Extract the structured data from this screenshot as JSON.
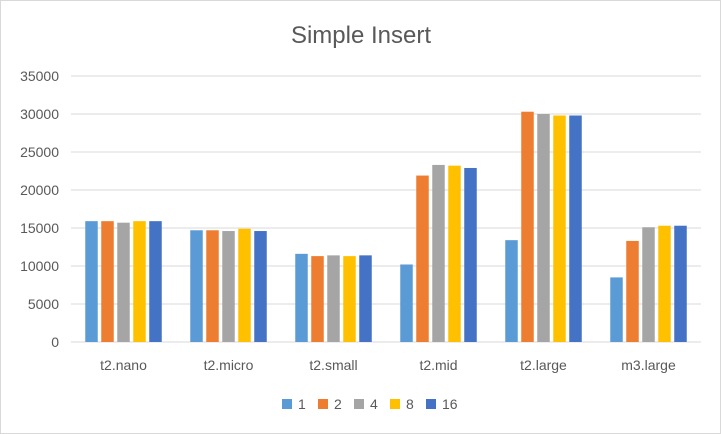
{
  "chart_data": {
    "type": "bar",
    "title": "Simple Insert",
    "xlabel": "",
    "ylabel": "",
    "categories": [
      "t2.nano",
      "t2.micro",
      "t2.small",
      "t2.mid",
      "t2.large",
      "m3.large"
    ],
    "series": [
      {
        "name": "1",
        "color": "#5b9bd5",
        "values": [
          15900,
          14700,
          11600,
          10200,
          13400,
          8500
        ]
      },
      {
        "name": "2",
        "color": "#ed7d31",
        "values": [
          15900,
          14700,
          11300,
          21900,
          30300,
          13300
        ]
      },
      {
        "name": "4",
        "color": "#a5a5a5",
        "values": [
          15700,
          14600,
          11400,
          23300,
          30000,
          15100
        ]
      },
      {
        "name": "8",
        "color": "#ffc000",
        "values": [
          15900,
          14900,
          11300,
          23200,
          29800,
          15300
        ]
      },
      {
        "name": "16",
        "color": "#4472c4",
        "values": [
          15900,
          14600,
          11400,
          22900,
          29800,
          15300
        ]
      }
    ],
    "ylim": [
      0,
      35000
    ],
    "yticks": [
      0,
      5000,
      10000,
      15000,
      20000,
      25000,
      30000,
      35000
    ],
    "grid": true,
    "gridline_color": "#d9d9d9",
    "legend": "bottom"
  }
}
